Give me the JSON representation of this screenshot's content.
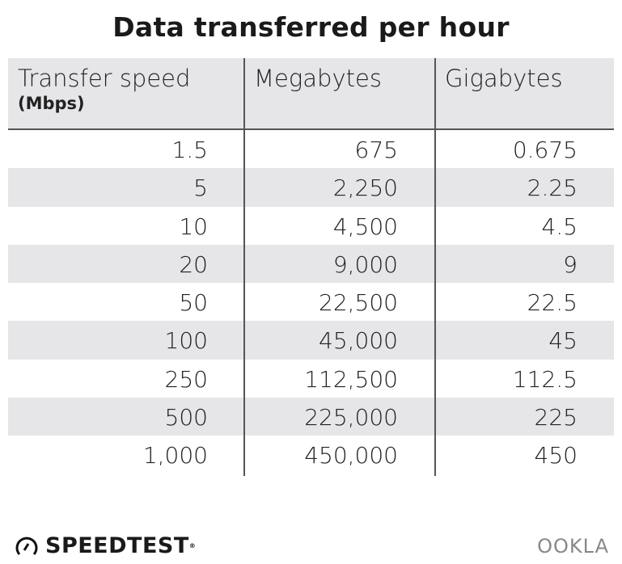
{
  "chart_data": {
    "type": "table",
    "title": "Data transferred per hour",
    "columns": [
      {
        "label": "Transfer speed",
        "sublabel": "(Mbps)"
      },
      {
        "label": "Megabytes"
      },
      {
        "label": "Gigabytes"
      }
    ],
    "rows": [
      [
        "1.5",
        "675",
        "0.675"
      ],
      [
        "5",
        "2,250",
        "2.25"
      ],
      [
        "10",
        "4,500",
        "4.5"
      ],
      [
        "20",
        "9,000",
        "9"
      ],
      [
        "50",
        "22,500",
        "22.5"
      ],
      [
        "100",
        "45,000",
        "45"
      ],
      [
        "250",
        "112,500",
        "112.5"
      ],
      [
        "500",
        "225,000",
        "225"
      ],
      [
        "1,000",
        "450,000",
        "450"
      ]
    ],
    "stripe_color": "#e6e6e9"
  },
  "branding": {
    "speedtest": "SPEEDTEST",
    "ookla": "OOKLA"
  }
}
